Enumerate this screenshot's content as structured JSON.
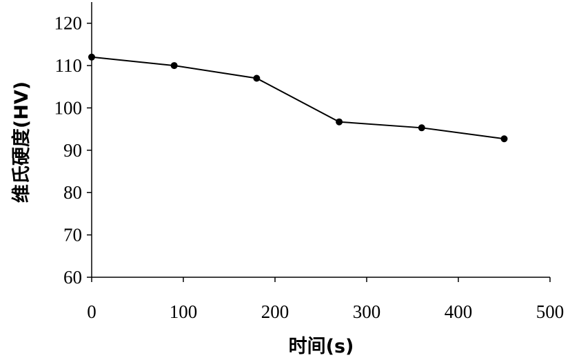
{
  "chart_data": {
    "type": "line",
    "title": "",
    "xlabel": "时间(s)",
    "ylabel": "维氏硬度(HV)",
    "xlim": [
      0,
      500
    ],
    "ylim": [
      60,
      125
    ],
    "xticks": [
      0,
      100,
      200,
      300,
      400,
      500
    ],
    "yticks": [
      60,
      70,
      80,
      90,
      100,
      110,
      120
    ],
    "grid": false,
    "legend": "none",
    "colors": {
      "line": "#000000",
      "marker": "#000000",
      "axis": "#000000"
    },
    "series": [
      {
        "x": [
          0,
          90,
          180,
          270,
          360,
          450
        ],
        "y": [
          112,
          110,
          107,
          96.7,
          95.3,
          92.7
        ]
      }
    ]
  }
}
